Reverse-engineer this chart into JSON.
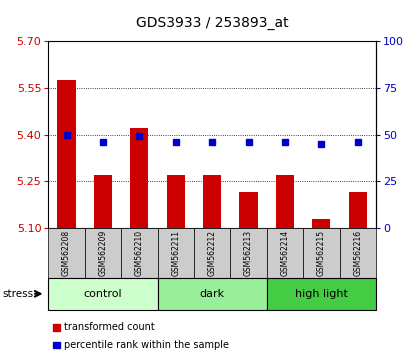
{
  "title": "GDS3933 / 253893_at",
  "samples": [
    "GSM562208",
    "GSM562209",
    "GSM562210",
    "GSM562211",
    "GSM562212",
    "GSM562213",
    "GSM562214",
    "GSM562215",
    "GSM562216"
  ],
  "red_values": [
    5.575,
    5.27,
    5.42,
    5.27,
    5.27,
    5.215,
    5.27,
    5.13,
    5.215
  ],
  "blue_pct": [
    50,
    46,
    49,
    46,
    46,
    46,
    46,
    45,
    46
  ],
  "ylim_left": [
    5.1,
    5.7
  ],
  "ylim_right": [
    0,
    100
  ],
  "yticks_left": [
    5.1,
    5.25,
    5.4,
    5.55,
    5.7
  ],
  "yticks_right": [
    0,
    25,
    50,
    75,
    100
  ],
  "groups": [
    {
      "label": "control",
      "indices": [
        0,
        1,
        2
      ],
      "color": "#ccffcc"
    },
    {
      "label": "dark",
      "indices": [
        3,
        4,
        5
      ],
      "color": "#99ee99"
    },
    {
      "label": "high light",
      "indices": [
        6,
        7,
        8
      ],
      "color": "#44cc44"
    }
  ],
  "group_row_color": "#cccccc",
  "bar_color": "#cc0000",
  "dot_color": "#0000cc",
  "background_color": "#ffffff",
  "stress_label": "stress",
  "legend_items": [
    "transformed count",
    "percentile rank within the sample"
  ],
  "legend_colors": [
    "#cc0000",
    "#0000cc"
  ],
  "title_fontsize": 10,
  "axis_fontsize": 8,
  "sample_fontsize": 5.5,
  "group_fontsize": 8,
  "legend_fontsize": 7
}
